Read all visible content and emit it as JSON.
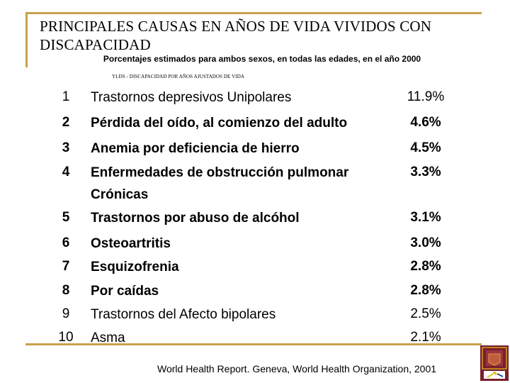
{
  "title": "PRINCIPALES CAUSAS EN AÑOS DE VIDA VIVIDOS CON DISCAPACIDAD",
  "subtitle": "Porcentajes estimados para ambos sexos, en todas las edades, en el año 2000",
  "note": "YLDS - DISCAPACIDAD POR AÑOS AJUSTADOS DE VIDA",
  "rows": [
    {
      "rank": "1",
      "cause": "Trastornos depresivos Unipolares",
      "pct": "11.9%"
    },
    {
      "rank": "2",
      "cause": "Pérdida del oído, al comienzo del adulto",
      "pct": "4.6%"
    },
    {
      "rank": "3",
      "cause": "Anemia por deficiencia de hierro",
      "pct": "4.5%"
    },
    {
      "rank": "4",
      "cause": "Enfermedades de obstrucción pulmonar Crónicas",
      "pct": "3.3%"
    },
    {
      "rank": "5",
      "cause": "Trastornos por abuso de alcóhol",
      "pct": "3.1%"
    },
    {
      "rank": "6",
      "cause": "Osteoartritis",
      "pct": "3.0%"
    },
    {
      "rank": "7",
      "cause": "Esquizofrenia",
      "pct": "2.8%"
    },
    {
      "rank": "8",
      "cause": "Por caídas",
      "pct": "2.8%"
    },
    {
      "rank": "9",
      "cause": "Trastornos del Afecto bipolares",
      "pct": "2.5%"
    },
    {
      "rank": "10",
      "cause": "Asma",
      "pct": "2.1%"
    }
  ],
  "credit": "World Health Report. Geneva, World Health Organization, 2001",
  "colors": {
    "frame": "#c8a24a",
    "logo_bg": "#7a1f2b",
    "logo_accent": "#e8c020"
  }
}
